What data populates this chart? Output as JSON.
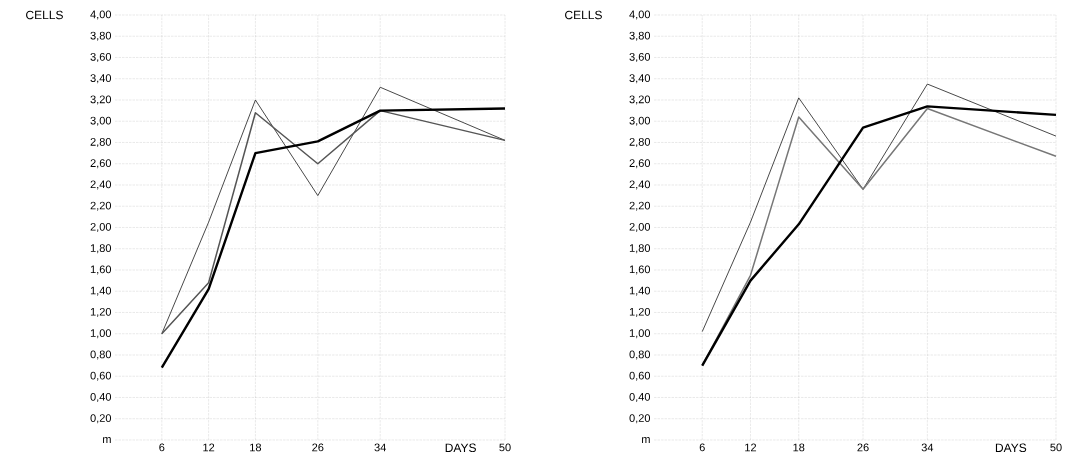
{
  "chart_data": [
    {
      "type": "line",
      "xlabel": "DAYS",
      "ylabel": "CELLS",
      "x": [
        6,
        12,
        18,
        26,
        34,
        50
      ],
      "xlim": [
        0,
        50
      ],
      "xticks": [
        6,
        12,
        18,
        26,
        34,
        50
      ],
      "ylim": [
        0,
        4
      ],
      "yticks": [
        {
          "value": 0,
          "label": "m"
        },
        {
          "value": 0.2,
          "label": "0,20"
        },
        {
          "value": 0.4,
          "label": "0,40"
        },
        {
          "value": 0.6,
          "label": "0,60"
        },
        {
          "value": 0.8,
          "label": "0,80"
        },
        {
          "value": 1.0,
          "label": "1,00"
        },
        {
          "value": 1.2,
          "label": "1,20"
        },
        {
          "value": 1.4,
          "label": "1,40"
        },
        {
          "value": 1.6,
          "label": "1,60"
        },
        {
          "value": 1.8,
          "label": "1,80"
        },
        {
          "value": 2.0,
          "label": "2,00"
        },
        {
          "value": 2.2,
          "label": "2,20"
        },
        {
          "value": 2.4,
          "label": "2,40"
        },
        {
          "value": 2.6,
          "label": "2,60"
        },
        {
          "value": 2.8,
          "label": "2,80"
        },
        {
          "value": 3.0,
          "label": "3,00"
        },
        {
          "value": 3.2,
          "label": "3,20"
        },
        {
          "value": 3.4,
          "label": "3,40"
        },
        {
          "value": 3.6,
          "label": "3,60"
        },
        {
          "value": 3.8,
          "label": "3,80"
        },
        {
          "value": 4.0,
          "label": "4,00"
        }
      ],
      "grid": true,
      "line_style": "solid",
      "series": [
        {
          "color": "#1a1a1a",
          "values": [
            1.0,
            2.05,
            3.2,
            2.3,
            3.32,
            2.82
          ]
        },
        {
          "color": "#555555",
          "values": [
            1.0,
            1.48,
            3.08,
            2.6,
            3.1,
            2.82
          ]
        },
        {
          "color": "#000000",
          "values": [
            0.68,
            1.42,
            2.7,
            2.81,
            3.1,
            3.12
          ]
        }
      ]
    },
    {
      "type": "line",
      "xlabel": "DAYS",
      "ylabel": "CELLS",
      "x": [
        6,
        12,
        18,
        26,
        34,
        50
      ],
      "xlim": [
        0,
        50
      ],
      "xticks": [
        6,
        12,
        18,
        26,
        34,
        50
      ],
      "ylim": [
        0,
        4
      ],
      "yticks": [
        {
          "value": 0,
          "label": "m"
        },
        {
          "value": 0.2,
          "label": "0,20"
        },
        {
          "value": 0.4,
          "label": "0,40"
        },
        {
          "value": 0.6,
          "label": "0,60"
        },
        {
          "value": 0.8,
          "label": "0,80"
        },
        {
          "value": 1.0,
          "label": "1,00"
        },
        {
          "value": 1.2,
          "label": "1,20"
        },
        {
          "value": 1.4,
          "label": "1,40"
        },
        {
          "value": 1.6,
          "label": "1,60"
        },
        {
          "value": 1.8,
          "label": "1,80"
        },
        {
          "value": 2.0,
          "label": "2,00"
        },
        {
          "value": 2.2,
          "label": "2,20"
        },
        {
          "value": 2.4,
          "label": "2,40"
        },
        {
          "value": 2.6,
          "label": "2,60"
        },
        {
          "value": 2.8,
          "label": "2,80"
        },
        {
          "value": 3.0,
          "label": "3,00"
        },
        {
          "value": 3.2,
          "label": "3,20"
        },
        {
          "value": 3.4,
          "label": "3,40"
        },
        {
          "value": 3.6,
          "label": "3,60"
        },
        {
          "value": 3.8,
          "label": "3,80"
        },
        {
          "value": 4.0,
          "label": "4,00"
        }
      ],
      "grid": true,
      "line_style": "solid",
      "series": [
        {
          "color": "#1a1a1a",
          "values": [
            1.02,
            2.05,
            3.22,
            2.36,
            3.35,
            2.86
          ]
        },
        {
          "color": "#777777",
          "values": [
            0.7,
            1.55,
            3.04,
            2.36,
            3.12,
            2.67
          ]
        },
        {
          "color": "#000000",
          "values": [
            0.7,
            1.5,
            2.03,
            2.94,
            3.14,
            3.06
          ]
        }
      ]
    }
  ]
}
